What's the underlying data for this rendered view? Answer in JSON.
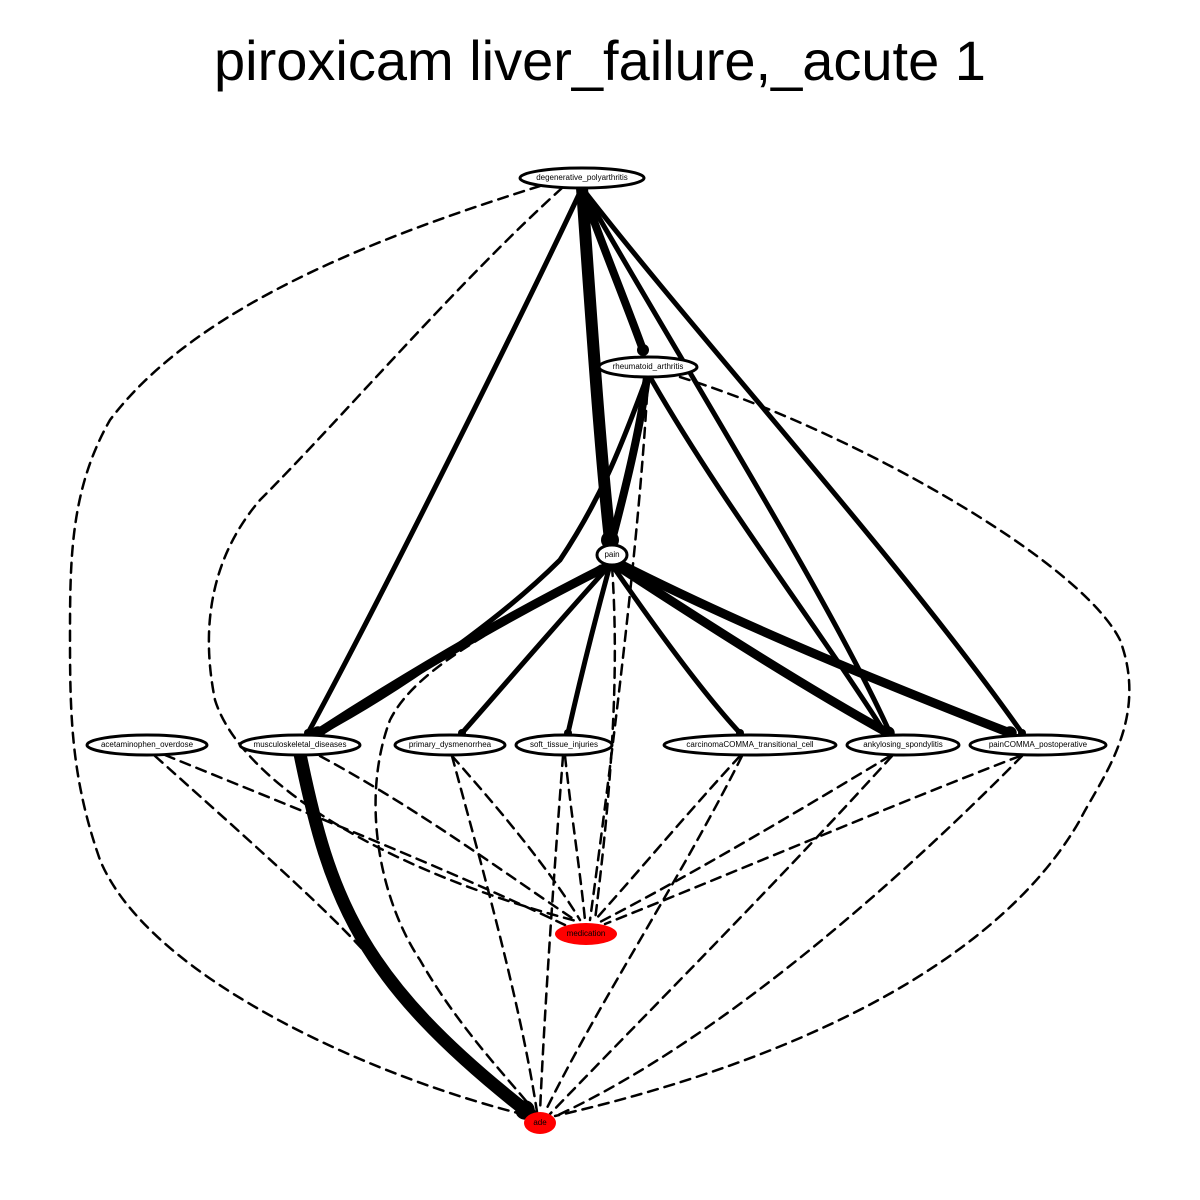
{
  "title": "piroxicam liver_failure,_acute 1",
  "colors": {
    "outcome_fill": "#ff0000",
    "node_fill": "#ffffff",
    "stroke": "#000000"
  },
  "nodes": {
    "degenerative_polyarthritis": "degenerative_polyarthritis",
    "rheumatoid_arthritis": "rheumatoid_arthritis",
    "pain": "pain",
    "acetaminophen_overdose": "acetaminophen_overdose",
    "musculoskeletal_diseases": "musculoskeletal_diseases",
    "primary_dysmenorrhea": "primary_dysmenorrhea",
    "soft_tissue_injuries": "soft_tissue_injuries",
    "carcinoma_transitional_cell": "carcinomaCOMMA_transitional_cell",
    "ankylosing_spondylitis": "ankylosing_spondylitis",
    "pain_postoperative": "painCOMMA_postoperative",
    "medication": "medication",
    "ade": "ade"
  },
  "edges": [
    {
      "from": "degenerative_polyarthritis",
      "to": "pain",
      "style": "solid",
      "weight": 12
    },
    {
      "from": "degenerative_polyarthritis",
      "to": "rheumatoid_arthritis",
      "style": "solid",
      "weight": 8
    },
    {
      "from": "degenerative_polyarthritis",
      "to": "musculoskeletal_diseases",
      "style": "solid",
      "weight": 5
    },
    {
      "from": "degenerative_polyarthritis",
      "to": "ankylosing_spondylitis",
      "style": "solid",
      "weight": 5
    },
    {
      "from": "degenerative_polyarthritis",
      "to": "pain_postoperative",
      "style": "solid",
      "weight": 5
    },
    {
      "from": "degenerative_polyarthritis",
      "to": "medication",
      "style": "dashed",
      "weight": 2.5
    },
    {
      "from": "degenerative_polyarthritis",
      "to": "ade",
      "style": "dashed",
      "weight": 2.5
    },
    {
      "from": "rheumatoid_arthritis",
      "to": "pain",
      "style": "solid",
      "weight": 8
    },
    {
      "from": "rheumatoid_arthritis",
      "to": "musculoskeletal_diseases",
      "style": "solid",
      "weight": 5
    },
    {
      "from": "rheumatoid_arthritis",
      "to": "ankylosing_spondylitis",
      "style": "solid",
      "weight": 5
    },
    {
      "from": "rheumatoid_arthritis",
      "to": "medication",
      "style": "dashed",
      "weight": 2.5
    },
    {
      "from": "rheumatoid_arthritis",
      "to": "ade",
      "style": "dashed",
      "weight": 2.5
    },
    {
      "from": "pain",
      "to": "musculoskeletal_diseases",
      "style": "solid",
      "weight": 9
    },
    {
      "from": "pain",
      "to": "primary_dysmenorrhea",
      "style": "solid",
      "weight": 5
    },
    {
      "from": "pain",
      "to": "soft_tissue_injuries",
      "style": "solid",
      "weight": 5
    },
    {
      "from": "pain",
      "to": "carcinoma_transitional_cell",
      "style": "solid",
      "weight": 5
    },
    {
      "from": "pain",
      "to": "ankylosing_spondylitis",
      "style": "solid",
      "weight": 9
    },
    {
      "from": "pain",
      "to": "pain_postoperative",
      "style": "solid",
      "weight": 9
    },
    {
      "from": "pain",
      "to": "medication",
      "style": "dashed",
      "weight": 2.5
    },
    {
      "from": "pain",
      "to": "ade",
      "style": "dashed",
      "weight": 2.5
    },
    {
      "from": "acetaminophen_overdose",
      "to": "medication",
      "style": "dashed",
      "weight": 2.5
    },
    {
      "from": "acetaminophen_overdose",
      "to": "ade",
      "style": "dashed",
      "weight": 2.5
    },
    {
      "from": "musculoskeletal_diseases",
      "to": "ade",
      "style": "solid",
      "weight": 13
    },
    {
      "from": "musculoskeletal_diseases",
      "to": "medication",
      "style": "dashed",
      "weight": 2.5
    },
    {
      "from": "primary_dysmenorrhea",
      "to": "medication",
      "style": "dashed",
      "weight": 2.5
    },
    {
      "from": "primary_dysmenorrhea",
      "to": "ade",
      "style": "dashed",
      "weight": 2.5
    },
    {
      "from": "soft_tissue_injuries",
      "to": "medication",
      "style": "dashed",
      "weight": 2.5
    },
    {
      "from": "soft_tissue_injuries",
      "to": "ade",
      "style": "dashed",
      "weight": 2.5
    },
    {
      "from": "carcinoma_transitional_cell",
      "to": "medication",
      "style": "dashed",
      "weight": 2.5
    },
    {
      "from": "carcinoma_transitional_cell",
      "to": "ade",
      "style": "dashed",
      "weight": 2.5
    },
    {
      "from": "ankylosing_spondylitis",
      "to": "medication",
      "style": "dashed",
      "weight": 2.5
    },
    {
      "from": "ankylosing_spondylitis",
      "to": "ade",
      "style": "dashed",
      "weight": 2.5
    },
    {
      "from": "pain_postoperative",
      "to": "medication",
      "style": "dashed",
      "weight": 2.5
    },
    {
      "from": "pain_postoperative",
      "to": "ade",
      "style": "dashed",
      "weight": 2.5
    }
  ]
}
